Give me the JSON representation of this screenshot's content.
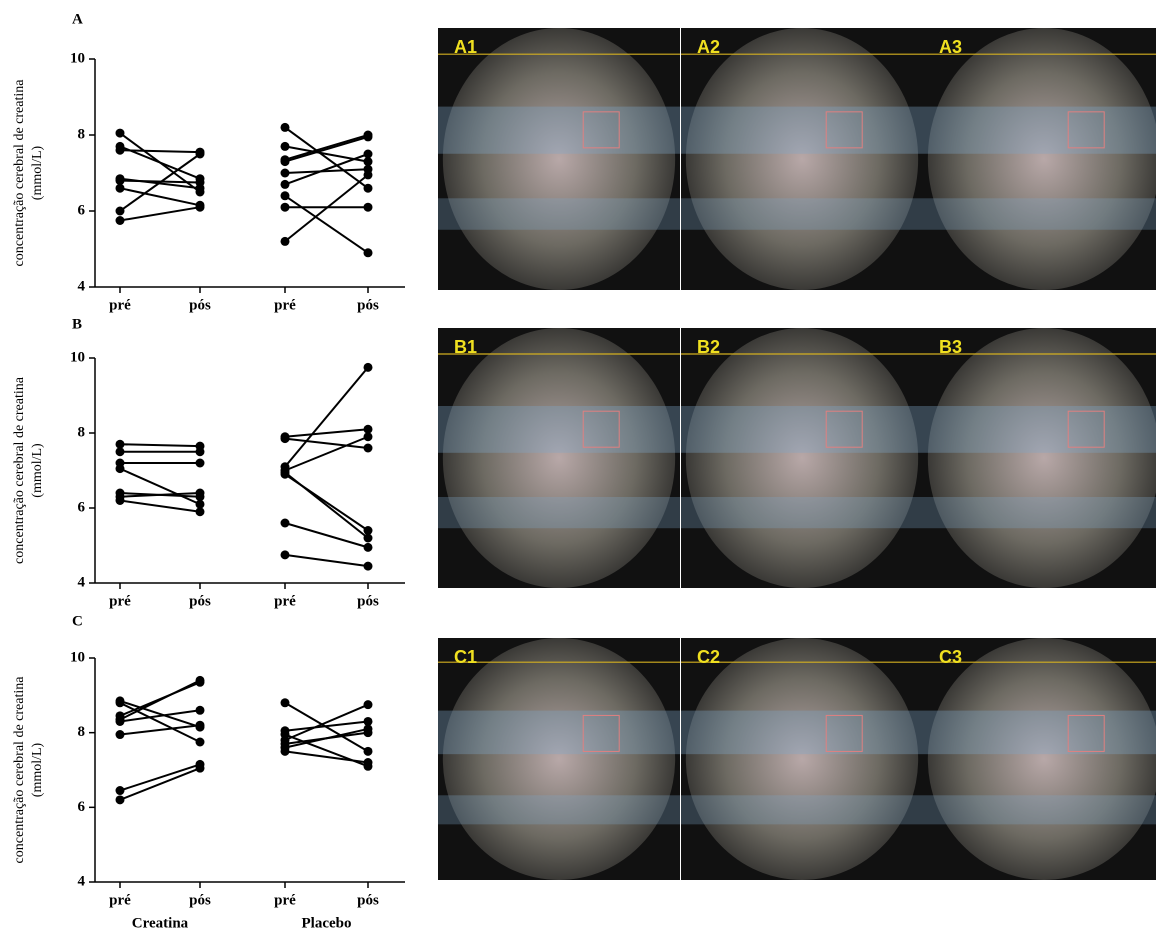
{
  "chart_data": [
    {
      "type": "paired",
      "title": "A",
      "ylabel": [
        "concentração cerebral de creatina",
        "(mmol/L)"
      ],
      "categories": [
        "pré",
        "pós",
        "pré",
        "pós"
      ],
      "color": "#000000",
      "ylim": [
        4,
        10
      ],
      "yticks": [
        4,
        6,
        8,
        10
      ],
      "series": [
        {
          "values": [
            8.05,
            6.5,
            null,
            null
          ]
        },
        {
          "values": [
            7.7,
            6.85,
            null,
            null
          ]
        },
        {
          "values": [
            7.6,
            7.55,
            null,
            null
          ]
        },
        {
          "values": [
            6.85,
            6.6,
            null,
            null
          ]
        },
        {
          "values": [
            6.8,
            6.75,
            null,
            null
          ]
        },
        {
          "values": [
            6.6,
            6.15,
            null,
            null
          ]
        },
        {
          "values": [
            6.0,
            7.5,
            null,
            null
          ]
        },
        {
          "values": [
            5.75,
            6.1,
            null,
            null
          ]
        },
        {
          "values": [
            null,
            null,
            8.2,
            6.6
          ]
        },
        {
          "values": [
            null,
            null,
            7.7,
            7.3
          ]
        },
        {
          "values": [
            null,
            null,
            7.35,
            8.0
          ]
        },
        {
          "values": [
            null,
            null,
            7.3,
            7.95
          ]
        },
        {
          "values": [
            null,
            null,
            7.0,
            7.1
          ]
        },
        {
          "values": [
            null,
            null,
            6.7,
            7.5
          ]
        },
        {
          "values": [
            null,
            null,
            6.4,
            4.9
          ]
        },
        {
          "values": [
            null,
            null,
            6.1,
            6.1
          ]
        },
        {
          "values": [
            null,
            null,
            5.2,
            6.95
          ]
        }
      ]
    },
    {
      "type": "paired",
      "title": "B",
      "ylabel": [
        "concentração cerebral de creatina",
        "(mmol/L)"
      ],
      "categories": [
        "pré",
        "pós",
        "pré",
        "pós"
      ],
      "color": "#000000",
      "ylim": [
        4,
        10
      ],
      "yticks": [
        4,
        6,
        8,
        10
      ],
      "series": [
        {
          "values": [
            7.7,
            7.65,
            null,
            null
          ]
        },
        {
          "values": [
            7.5,
            7.5,
            null,
            null
          ]
        },
        {
          "values": [
            7.2,
            7.2,
            null,
            null
          ]
        },
        {
          "values": [
            7.05,
            6.1,
            null,
            null
          ]
        },
        {
          "values": [
            6.4,
            6.3,
            null,
            null
          ]
        },
        {
          "values": [
            6.3,
            6.4,
            null,
            null
          ]
        },
        {
          "values": [
            6.2,
            5.9,
            null,
            null
          ]
        },
        {
          "values": [
            null,
            null,
            7.9,
            8.1
          ]
        },
        {
          "values": [
            null,
            null,
            7.85,
            7.6
          ]
        },
        {
          "values": [
            null,
            null,
            7.1,
            9.75
          ]
        },
        {
          "values": [
            null,
            null,
            7.0,
            7.9
          ]
        },
        {
          "values": [
            null,
            null,
            6.95,
            5.2
          ]
        },
        {
          "values": [
            null,
            null,
            6.9,
            5.4
          ]
        },
        {
          "values": [
            null,
            null,
            5.6,
            4.95
          ]
        },
        {
          "values": [
            null,
            null,
            4.75,
            4.45
          ]
        }
      ]
    },
    {
      "type": "paired",
      "title": "C",
      "ylabel": [
        "concentração cerebral de creatina",
        "(mmol/L)"
      ],
      "categories": [
        "pré",
        "pós",
        "pré",
        "pós"
      ],
      "color": "#000000",
      "group_labels": [
        "Creatina",
        "Placebo"
      ],
      "ylim": [
        4,
        10
      ],
      "yticks": [
        4,
        6,
        8,
        10
      ],
      "series": [
        {
          "values": [
            8.85,
            8.15,
            null,
            null
          ]
        },
        {
          "values": [
            8.8,
            7.75,
            null,
            null
          ]
        },
        {
          "values": [
            8.45,
            9.35,
            null,
            null
          ]
        },
        {
          "values": [
            8.35,
            9.4,
            null,
            null
          ]
        },
        {
          "values": [
            8.3,
            8.6,
            null,
            null
          ]
        },
        {
          "values": [
            7.95,
            8.2,
            null,
            null
          ]
        },
        {
          "values": [
            6.45,
            7.15,
            null,
            null
          ]
        },
        {
          "values": [
            6.2,
            7.05,
            null,
            null
          ]
        },
        {
          "values": [
            null,
            null,
            8.8,
            7.5
          ]
        },
        {
          "values": [
            null,
            null,
            8.05,
            8.3
          ]
        },
        {
          "values": [
            null,
            null,
            7.95,
            7.1
          ]
        },
        {
          "values": [
            null,
            null,
            7.8,
            8.75
          ]
        },
        {
          "values": [
            null,
            null,
            7.7,
            8.0
          ]
        },
        {
          "values": [
            null,
            null,
            7.6,
            8.1
          ]
        },
        {
          "values": [
            null,
            null,
            7.5,
            7.2
          ]
        }
      ]
    }
  ],
  "images": [
    [
      {
        "label": "A1"
      },
      {
        "label": "A2"
      },
      {
        "label": "A3"
      }
    ],
    [
      {
        "label": "B1"
      },
      {
        "label": "B2"
      },
      {
        "label": "B3"
      }
    ],
    [
      {
        "label": "C1"
      },
      {
        "label": "C2"
      },
      {
        "label": "C3"
      }
    ]
  ]
}
